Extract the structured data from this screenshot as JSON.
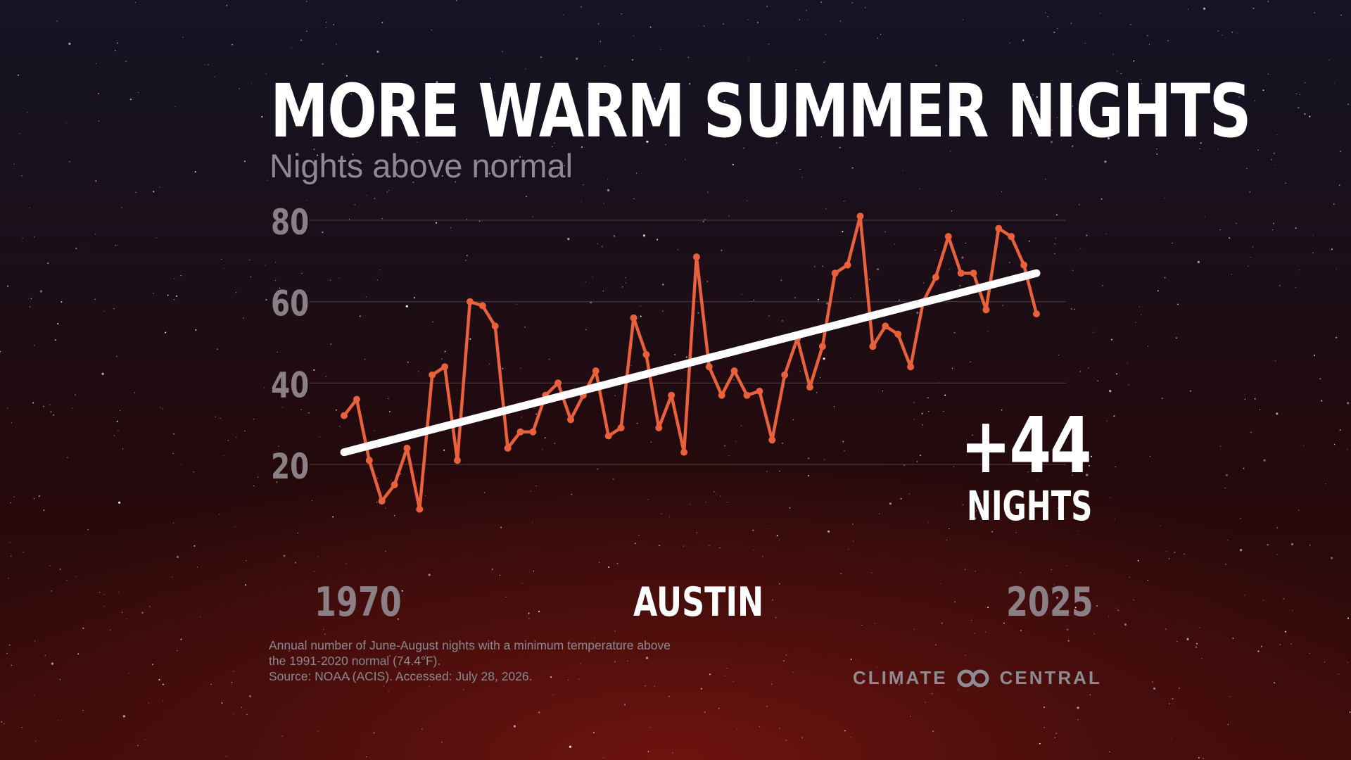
{
  "title": "MORE WARM SUMMER NIGHTS",
  "subtitle": "Nights above normal",
  "callout": {
    "value": "+44",
    "unit": "NIGHTS"
  },
  "location": "AUSTIN",
  "footnote": {
    "line1": "Annual number of June-August nights with a minimum temperature above",
    "line2": "the 1991-2020 normal (74.4°F).",
    "line3": "Source: NOAA (ACIS). Accessed: July 28, 2026."
  },
  "logo": {
    "left": "CLIMATE",
    "right": "CENTRAL"
  },
  "colors": {
    "series": "#e8603c",
    "trend": "#ffffff",
    "axis_text": "#8a7f84",
    "grid": "#4a3a3c"
  },
  "chart_data": {
    "type": "line",
    "title": "MORE WARM SUMMER NIGHTS",
    "subtitle": "Nights above normal",
    "xlabel": "",
    "ylabel": "",
    "x_tick_labels": [
      "1970",
      "2025"
    ],
    "y_ticks": [
      20,
      40,
      60,
      80
    ],
    "xlim": [
      1970,
      2025
    ],
    "ylim": [
      20,
      80
    ],
    "grid": true,
    "legend": "none",
    "x": [
      1970,
      1971,
      1972,
      1973,
      1974,
      1975,
      1976,
      1977,
      1978,
      1979,
      1980,
      1981,
      1982,
      1983,
      1984,
      1985,
      1986,
      1987,
      1988,
      1989,
      1990,
      1991,
      1992,
      1993,
      1994,
      1995,
      1996,
      1997,
      1998,
      1999,
      2000,
      2001,
      2002,
      2003,
      2004,
      2005,
      2006,
      2007,
      2008,
      2009,
      2010,
      2011,
      2012,
      2013,
      2014,
      2015,
      2016,
      2017,
      2018,
      2019,
      2020,
      2021,
      2022,
      2023,
      2024,
      2025
    ],
    "series": [
      {
        "values": [
          32,
          36,
          21,
          11,
          15,
          24,
          9,
          42,
          44,
          21,
          60,
          59,
          54,
          24,
          28,
          28,
          37,
          40,
          31,
          37,
          43,
          27,
          29,
          56,
          47,
          29,
          37,
          23,
          71,
          44,
          37,
          43,
          37,
          38,
          26,
          42,
          51,
          39,
          49,
          67,
          69,
          81,
          49,
          54,
          52,
          44,
          60,
          66,
          76,
          67,
          67,
          58,
          78,
          76,
          69,
          57
        ]
      },
      {
        "type": "trend",
        "x": [
          1970,
          2025
        ],
        "values": [
          23,
          67
        ]
      }
    ]
  }
}
